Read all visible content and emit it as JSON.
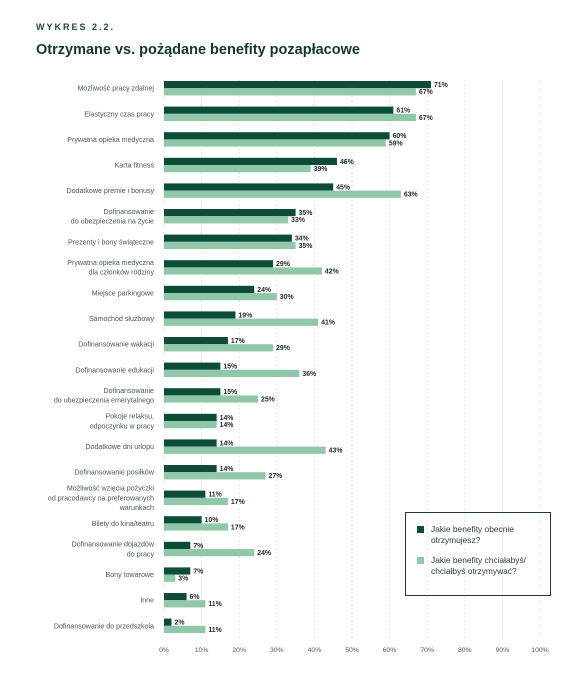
{
  "header": {
    "kicker": "WYKRES 2.2.",
    "title": "Otrzymane vs. pożądane benefity pozapłacowe"
  },
  "colors": {
    "received": "#0d4d38",
    "desired": "#8fc7a8",
    "grid": "#d6ddd9",
    "label": "#4a5752",
    "value": "#1f2a25"
  },
  "chart_data": {
    "type": "bar",
    "orientation": "horizontal",
    "categories": [
      [
        "Możliwość pracy zdalnej"
      ],
      [
        "Elastyczny czas pracy"
      ],
      [
        "Prywatna opieka medyczna"
      ],
      [
        "Karta fitness"
      ],
      [
        "Dodatkowe premie i bonusy"
      ],
      [
        "Dofinansowanie",
        "do ubezpieczenia na życie"
      ],
      [
        "Prezenty i bony świąteczne"
      ],
      [
        "Prywatna opieka medyczna",
        "dla członków rodziny"
      ],
      [
        "Miejsce parkingowe"
      ],
      [
        "Samochód służbowy"
      ],
      [
        "Dofinansowanie wakacji"
      ],
      [
        "Dofinansowanie edukacji"
      ],
      [
        "Dofinansowanie",
        "do ubezpieczenia emerytalnego"
      ],
      [
        "Pokoje relaksu,",
        "odpoczynku w pracy"
      ],
      [
        "Dodatkowe dni urlopu"
      ],
      [
        "Dofinansowanie posiłków"
      ],
      [
        "Możliwość wzięcia pożyczki",
        "od pracodawcy na preferowanych",
        "warunkach"
      ],
      [
        "Bilety do kina/teatru"
      ],
      [
        "Dofinansowanie dojazdów",
        "do pracy"
      ],
      [
        "Bony towarowe"
      ],
      [
        "Inne"
      ],
      [
        "Dofinansowanie do przedszkola"
      ]
    ],
    "series": [
      {
        "name": "Jakie benefity obecnie otrzymujesz?",
        "values": [
          71,
          61,
          60,
          46,
          45,
          35,
          34,
          29,
          24,
          19,
          17,
          15,
          15,
          14,
          14,
          14,
          11,
          10,
          7,
          7,
          6,
          2
        ]
      },
      {
        "name": "Jakie benefity chciałabyś/ chciałbyś otrzymywać?",
        "values": [
          67,
          67,
          59,
          39,
          63,
          33,
          35,
          42,
          30,
          41,
          29,
          36,
          25,
          14,
          43,
          27,
          17,
          17,
          24,
          3,
          11,
          11
        ]
      }
    ],
    "value_suffix": "%",
    "xlim": [
      0,
      100
    ],
    "xticks": [
      "0%",
      "10%",
      "20%",
      "30%",
      "40%",
      "50%",
      "60%",
      "70%",
      "80%",
      "90%",
      "100%"
    ],
    "grid": "vertical, dashed",
    "legend_position": "right-bottom"
  },
  "legend": {
    "items": [
      {
        "label_lines": [
          "Jakie benefity obecnie",
          "otrzymujesz?"
        ]
      },
      {
        "label_lines": [
          "Jakie benefity chciałabyś/",
          "chciałbyś otrzymywać?"
        ]
      }
    ]
  }
}
